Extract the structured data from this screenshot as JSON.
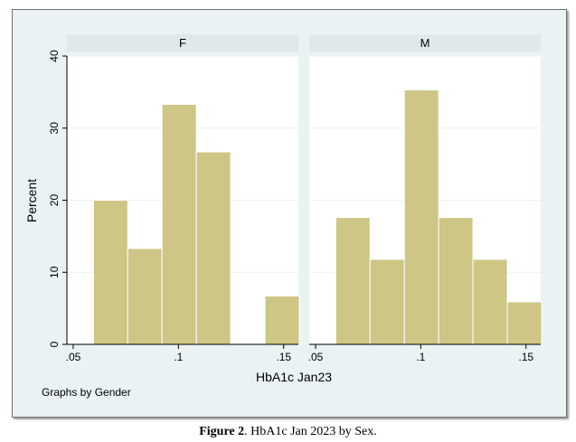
{
  "figure": {
    "caption_label": "Figure 2",
    "caption_text": ". HbA1c Jan 2023 by Sex."
  },
  "chart_data": {
    "type": "bar",
    "subtype": "histogram",
    "by_label": "Graphs by Gender",
    "xlabel": "HbA1c Jan23",
    "ylabel": "Percent",
    "ylim": [
      0,
      40
    ],
    "yticks": [
      0,
      10,
      20,
      30,
      40
    ],
    "xticks": [
      {
        "value": 0.05,
        "label": ".05"
      },
      {
        "value": 0.1,
        "label": ".1"
      },
      {
        "value": 0.15,
        "label": ".15"
      }
    ],
    "xlim": [
      0.047,
      0.157
    ],
    "bin_width": 0.0163,
    "grid": true,
    "colors": {
      "bar_fill": "#cdc685",
      "bar_edge": "#ffffff",
      "panel_header": "#dfe9ec",
      "outer_bg": "#eaf2f3",
      "plot_bg": "#ffffff"
    },
    "panels": [
      {
        "name": "F",
        "bins": [
          {
            "start": 0.0596,
            "value": 20.0
          },
          {
            "start": 0.0759,
            "value": 13.3
          },
          {
            "start": 0.0922,
            "value": 33.3
          },
          {
            "start": 0.1085,
            "value": 26.7
          },
          {
            "start": 0.1248,
            "value": 0
          },
          {
            "start": 0.1411,
            "value": 6.7
          }
        ]
      },
      {
        "name": "M",
        "bins": [
          {
            "start": 0.0596,
            "value": 17.6
          },
          {
            "start": 0.0759,
            "value": 11.8
          },
          {
            "start": 0.0922,
            "value": 35.3
          },
          {
            "start": 0.1085,
            "value": 17.6
          },
          {
            "start": 0.1248,
            "value": 11.8
          },
          {
            "start": 0.1411,
            "value": 5.9
          }
        ]
      }
    ]
  }
}
